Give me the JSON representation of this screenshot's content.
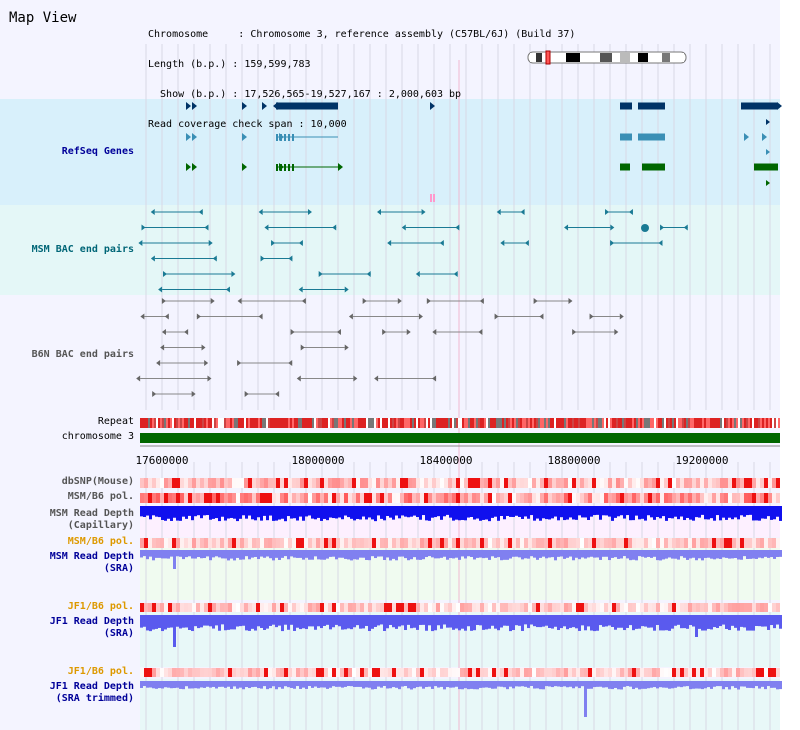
{
  "title": "Map View",
  "info": {
    "chromosome": "Chromosome     : Chromosome 3, reference assembly (C57BL/6J) (Build 37)",
    "length": "Length (b.p.) : 159,599,783",
    "show": "  Show (b.p.) : 17,526,565-19,527,167 : 2,000,603 bp",
    "coverage": "Read coverage check span : 10,000"
  },
  "tracks": {
    "refseq": "RefSeq Genes",
    "msm_bac": "MSM BAC end pairs",
    "b6n_bac": "B6N BAC end pairs",
    "repeat": "Repeat",
    "chromosome": "chromosome 3",
    "dbsnp": "dbSNP(Mouse)",
    "msm_pol": "MSM/B6 pol.",
    "msm_depth_cap": "MSM Read Depth\n(Capillary)",
    "msm_pol2": "MSM/B6 pol.",
    "msm_depth_sra": "MSM Read Depth\n(SRA)",
    "jf1_pol": "JF1/B6 pol.",
    "jf1_depth_sra": "JF1 Read Depth\n(SRA)",
    "jf1_pol2": "JF1/B6 pol.",
    "jf1_depth_trim": "JF1 Read Depth\n(SRA trimmed)"
  },
  "axis": {
    "ticks": [
      "17600000",
      "18000000",
      "18400000",
      "18800000",
      "19200000"
    ]
  },
  "colors": {
    "refseq_bg": "#d8f0fb",
    "msm_bg": "#e4f7f7",
    "gene_dark": "#003366",
    "gene_mid": "#3a8fb5",
    "gene_green": "#006600",
    "msm_feature": "#1a7a94",
    "b6n_feature": "#555555",
    "chrom_bar": "#006600",
    "depth_blue": "#1010ee",
    "depth_light": "#8080f0"
  }
}
